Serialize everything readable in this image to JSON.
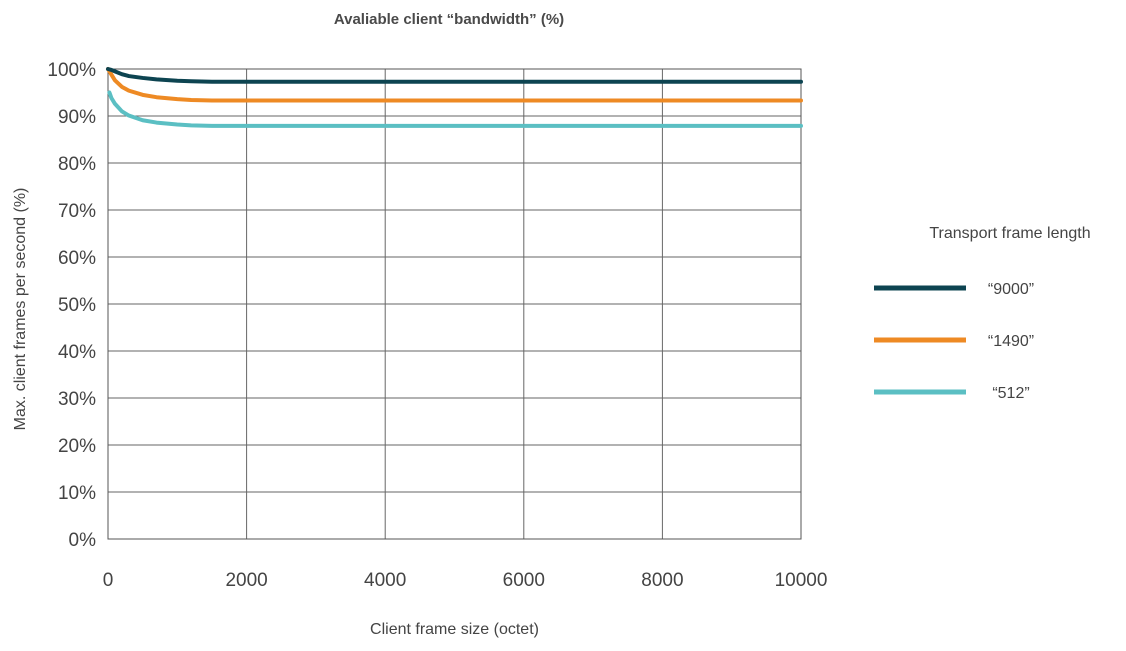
{
  "chart_data": {
    "type": "line",
    "title": "Avaliable client “bandwidth” (%)",
    "xlabel": "Client frame size (octet)",
    "ylabel": "Max. client frames per second (%)",
    "xlim": [
      0,
      10000
    ],
    "ylim": [
      0,
      100
    ],
    "x_ticks": [
      "0",
      "2000",
      "4000",
      "6000",
      "8000",
      "10000"
    ],
    "x_tick_values": [
      0,
      2000,
      4000,
      6000,
      8000,
      10000
    ],
    "y_ticks": [
      "0%",
      "10%",
      "20%",
      "30%",
      "40%",
      "50%",
      "60%",
      "70%",
      "80%",
      "90%",
      "100%"
    ],
    "y_tick_values": [
      0,
      10,
      20,
      30,
      40,
      50,
      60,
      70,
      80,
      90,
      100
    ],
    "grid": true,
    "legend_title": "Transport frame length",
    "legend_position": "right",
    "series": [
      {
        "name": "“9000”",
        "color": "#0d4451",
        "x": [
          0,
          50,
          100,
          200,
          300,
          500,
          700,
          1000,
          1200,
          1500,
          2000,
          4000,
          6000,
          8000,
          10000
        ],
        "values": [
          100,
          99.8,
          99.5,
          98.9,
          98.5,
          98.1,
          97.8,
          97.5,
          97.4,
          97.3,
          97.3,
          97.3,
          97.3,
          97.3,
          97.3
        ]
      },
      {
        "name": "“1490”",
        "color": "#ee8a24",
        "x": [
          0,
          50,
          100,
          200,
          300,
          500,
          700,
          1000,
          1200,
          1500,
          2000,
          4000,
          6000,
          8000,
          10000
        ],
        "values": [
          100,
          98.8,
          97.6,
          96.2,
          95.4,
          94.5,
          94.0,
          93.6,
          93.4,
          93.3,
          93.3,
          93.3,
          93.3,
          93.3,
          93.3
        ]
      },
      {
        "name": "“512”",
        "color": "#5bbfc3",
        "x": [
          20,
          50,
          100,
          200,
          300,
          500,
          700,
          1000,
          1200,
          1500,
          2000,
          4000,
          6000,
          8000,
          10000
        ],
        "values": [
          95.0,
          93.8,
          92.6,
          91.0,
          90.1,
          89.1,
          88.6,
          88.2,
          88.0,
          87.9,
          87.9,
          87.9,
          87.9,
          87.9,
          87.9
        ]
      }
    ]
  }
}
